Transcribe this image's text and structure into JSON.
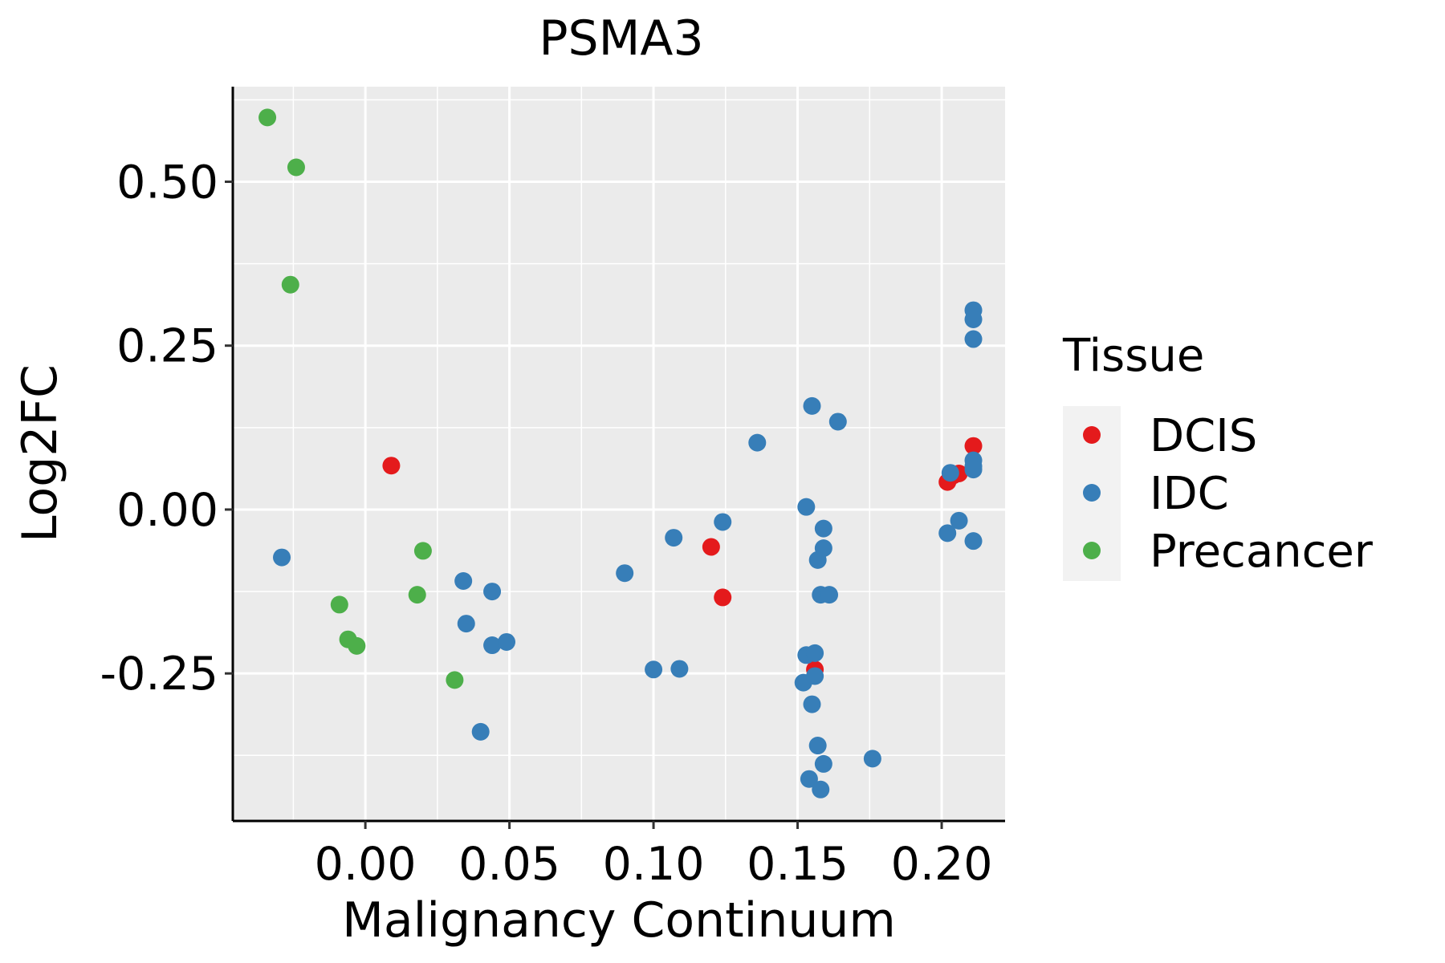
{
  "chart_data": {
    "type": "scatter",
    "title": "PSMA3",
    "xlabel": "Malignancy Continuum",
    "ylabel": "Log2FC",
    "xlim": [
      -0.046,
      0.222
    ],
    "ylim": [
      -0.475,
      0.645
    ],
    "xticks": [
      0.0,
      0.05,
      0.1,
      0.15,
      0.2
    ],
    "xtick_labels": [
      "0.00",
      "0.05",
      "0.10",
      "0.15",
      "0.20"
    ],
    "yticks": [
      -0.25,
      0.0,
      0.25,
      0.5
    ],
    "ytick_labels": [
      "-0.25",
      "0.00",
      "0.25",
      "0.50"
    ],
    "grid": true,
    "legend": {
      "title": "Tissue",
      "placement": "right"
    },
    "series": [
      {
        "name": "DCIS",
        "color": "#E41A1C",
        "points": [
          {
            "x": 0.009,
            "y": 0.067
          },
          {
            "x": 0.12,
            "y": -0.057
          },
          {
            "x": 0.124,
            "y": -0.134
          },
          {
            "x": 0.156,
            "y": -0.244
          },
          {
            "x": 0.202,
            "y": 0.042
          },
          {
            "x": 0.204,
            "y": 0.052
          },
          {
            "x": 0.206,
            "y": 0.055
          },
          {
            "x": 0.211,
            "y": 0.097
          }
        ]
      },
      {
        "name": "IDC",
        "color": "#377EB8",
        "points": [
          {
            "x": -0.029,
            "y": -0.073
          },
          {
            "x": 0.034,
            "y": -0.109
          },
          {
            "x": 0.035,
            "y": -0.174
          },
          {
            "x": 0.04,
            "y": -0.339
          },
          {
            "x": 0.044,
            "y": -0.125
          },
          {
            "x": 0.044,
            "y": -0.207
          },
          {
            "x": 0.049,
            "y": -0.202
          },
          {
            "x": 0.09,
            "y": -0.097
          },
          {
            "x": 0.1,
            "y": -0.244
          },
          {
            "x": 0.107,
            "y": -0.043
          },
          {
            "x": 0.109,
            "y": -0.243
          },
          {
            "x": 0.124,
            "y": -0.019
          },
          {
            "x": 0.136,
            "y": 0.102
          },
          {
            "x": 0.152,
            "y": -0.264
          },
          {
            "x": 0.153,
            "y": 0.004
          },
          {
            "x": 0.153,
            "y": -0.222
          },
          {
            "x": 0.154,
            "y": -0.411
          },
          {
            "x": 0.155,
            "y": 0.158
          },
          {
            "x": 0.155,
            "y": -0.297
          },
          {
            "x": 0.156,
            "y": -0.219
          },
          {
            "x": 0.156,
            "y": -0.254
          },
          {
            "x": 0.157,
            "y": -0.36
          },
          {
            "x": 0.157,
            "y": -0.077
          },
          {
            "x": 0.158,
            "y": -0.13
          },
          {
            "x": 0.158,
            "y": -0.427
          },
          {
            "x": 0.159,
            "y": -0.388
          },
          {
            "x": 0.159,
            "y": -0.029
          },
          {
            "x": 0.159,
            "y": -0.059
          },
          {
            "x": 0.161,
            "y": -0.13
          },
          {
            "x": 0.164,
            "y": 0.134
          },
          {
            "x": 0.176,
            "y": -0.38
          },
          {
            "x": 0.202,
            "y": -0.036
          },
          {
            "x": 0.203,
            "y": 0.056
          },
          {
            "x": 0.206,
            "y": -0.017
          },
          {
            "x": 0.211,
            "y": 0.304
          },
          {
            "x": 0.211,
            "y": 0.29
          },
          {
            "x": 0.211,
            "y": 0.26
          },
          {
            "x": 0.211,
            "y": 0.075
          },
          {
            "x": 0.211,
            "y": 0.066
          },
          {
            "x": 0.211,
            "y": 0.061
          },
          {
            "x": 0.211,
            "y": -0.048
          }
        ]
      },
      {
        "name": "Precancer",
        "color": "#4DAF4A",
        "points": [
          {
            "x": -0.034,
            "y": 0.598
          },
          {
            "x": -0.024,
            "y": 0.522
          },
          {
            "x": -0.026,
            "y": 0.343
          },
          {
            "x": 0.02,
            "y": -0.063
          },
          {
            "x": 0.018,
            "y": -0.13
          },
          {
            "x": -0.009,
            "y": -0.145
          },
          {
            "x": -0.006,
            "y": -0.198
          },
          {
            "x": -0.003,
            "y": -0.208
          },
          {
            "x": 0.031,
            "y": -0.26
          }
        ]
      }
    ]
  }
}
